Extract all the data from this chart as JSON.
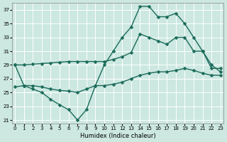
{
  "xlabel": "Humidex (Indice chaleur)",
  "bg_color": "#cce8e0",
  "grid_color": "#ffffff",
  "line_color": "#1a6b5a",
  "markersize": 2.5,
  "linewidth": 1.0,
  "ylim": [
    20.5,
    38
  ],
  "xlim": [
    -0.3,
    23.3
  ],
  "yticks": [
    21,
    23,
    25,
    27,
    29,
    31,
    33,
    35,
    37
  ],
  "xticks": [
    0,
    1,
    2,
    3,
    4,
    5,
    6,
    7,
    8,
    9,
    10,
    11,
    12,
    13,
    14,
    15,
    16,
    17,
    18,
    19,
    20,
    21,
    22,
    23
  ],
  "series": [
    {
      "x": [
        0,
        1,
        2,
        3,
        4,
        5,
        6,
        7,
        8,
        9,
        10,
        11,
        12,
        13,
        14,
        15,
        16,
        17,
        18,
        19,
        20,
        21,
        22,
        23
      ],
      "y": [
        29.0,
        29.0,
        29.1,
        29.2,
        29.3,
        29.4,
        29.5,
        29.5,
        29.5,
        29.5,
        29.5,
        29.8,
        30.2,
        30.8,
        33.5,
        33.0,
        32.5,
        32.0,
        33.0,
        33.0,
        31.0,
        31.0,
        28.5,
        28.5
      ]
    },
    {
      "x": [
        0,
        1,
        2,
        3,
        4,
        5,
        6,
        7,
        8,
        9,
        10,
        11,
        12,
        13,
        14,
        15,
        16,
        17,
        18,
        19,
        20,
        21,
        22,
        23
      ],
      "y": [
        29.0,
        26.0,
        25.5,
        25.0,
        24.0,
        23.2,
        22.5,
        21.0,
        22.5,
        26.0,
        29.0,
        31.0,
        33.0,
        34.5,
        37.5,
        37.5,
        36.0,
        36.0,
        36.5,
        35.0,
        33.0,
        31.0,
        29.0,
        28.0
      ]
    },
    {
      "x": [
        0,
        1,
        2,
        3,
        4,
        5,
        6,
        7,
        8,
        9,
        10,
        11,
        12,
        13,
        14,
        15,
        16,
        17,
        18,
        19,
        20,
        21,
        22,
        23
      ],
      "y": [
        25.8,
        26.0,
        26.0,
        25.8,
        25.5,
        25.3,
        25.2,
        25.0,
        25.5,
        26.0,
        26.0,
        26.2,
        26.5,
        27.0,
        27.5,
        27.8,
        28.0,
        28.0,
        28.2,
        28.5,
        28.2,
        27.8,
        27.5,
        27.5
      ]
    }
  ]
}
